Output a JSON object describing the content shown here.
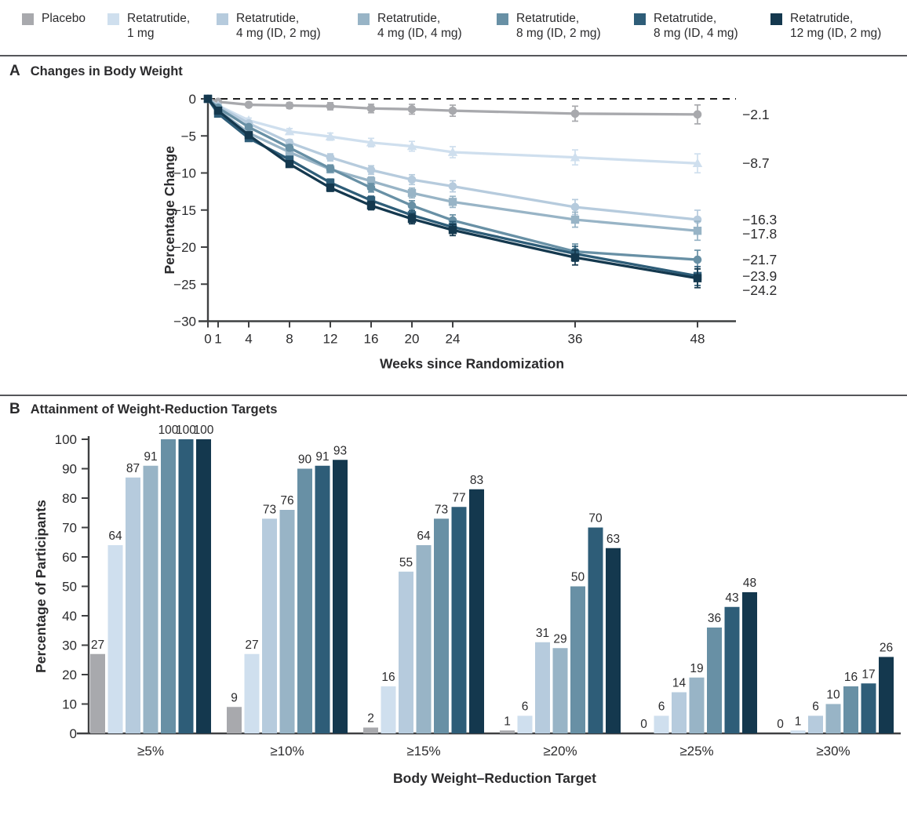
{
  "colors": {
    "axis": "#3f4042",
    "text": "#2b2b2d",
    "divider": "#55565a",
    "zero_line": "#1e1e1e",
    "series": [
      "#a8a9ad",
      "#cfdfee",
      "#b6cbdd",
      "#98b4c6",
      "#6890a5",
      "#2e5d78",
      "#14384e"
    ]
  },
  "legend": {
    "items": [
      {
        "line1": "Placebo",
        "line2": "",
        "color": "#a8a9ad"
      },
      {
        "line1": "Retatrutide,",
        "line2": "1 mg",
        "color": "#cfdfee"
      },
      {
        "line1": "Retatrutide,",
        "line2": "4 mg (ID, 2 mg)",
        "color": "#b6cbdd"
      },
      {
        "line1": "Retatrutide,",
        "line2": "4 mg (ID, 4 mg)",
        "color": "#98b4c6"
      },
      {
        "line1": "Retatrutide,",
        "line2": "8 mg (ID, 2 mg)",
        "color": "#6890a5"
      },
      {
        "line1": "Retatrutide,",
        "line2": "8 mg (ID, 4 mg)",
        "color": "#2e5d78"
      },
      {
        "line1": "Retatrutide,",
        "line2": "12 mg (ID, 2 mg)",
        "color": "#14384e"
      }
    ]
  },
  "panel_a": {
    "letter": "A",
    "title": "Changes in Body Weight",
    "ylabel": "Percentage Change",
    "xlabel": "Weeks since Randomization"
  },
  "panel_b": {
    "letter": "B",
    "title": "Attainment of Weight-Reduction Targets",
    "ylabel": "Percentage of Participants",
    "xlabel": "Body Weight–Reduction Target"
  },
  "chart_data": [
    {
      "type": "line",
      "title": "Changes in Body Weight",
      "xlabel": "Weeks since Randomization",
      "ylabel": "Percentage Change",
      "x": [
        0,
        1,
        4,
        8,
        12,
        16,
        20,
        24,
        36,
        48
      ],
      "xticks": [
        0,
        1,
        4,
        8,
        12,
        16,
        20,
        24,
        36,
        48
      ],
      "yticks": [
        0,
        -5,
        -10,
        -15,
        -20,
        -25,
        -30
      ],
      "ylim": [
        -30,
        0
      ],
      "zero_reference_line": true,
      "error_bars": true,
      "series": [
        {
          "name": "Placebo",
          "marker": "circle",
          "color": "#a8a9ad",
          "values": [
            0,
            -0.4,
            -0.8,
            -0.9,
            -1.0,
            -1.3,
            -1.4,
            -1.6,
            -2.0,
            -2.1
          ],
          "end_label": "−2.1"
        },
        {
          "name": "Retatrutide, 1 mg",
          "marker": "triangle",
          "color": "#cfdfee",
          "values": [
            0,
            -0.9,
            -2.9,
            -4.4,
            -5.1,
            -5.9,
            -6.4,
            -7.2,
            -7.9,
            -8.7
          ],
          "end_label": "−8.7"
        },
        {
          "name": "Retatrutide, 4 mg (ID, 2 mg)",
          "marker": "circle",
          "color": "#b6cbdd",
          "values": [
            0,
            -1.0,
            -3.3,
            -5.9,
            -7.9,
            -9.6,
            -10.9,
            -11.8,
            -14.6,
            -16.3
          ],
          "end_label": "−16.3"
        },
        {
          "name": "Retatrutide, 4 mg (ID, 4 mg)",
          "marker": "square",
          "color": "#98b4c6",
          "values": [
            0,
            -1.5,
            -4.6,
            -7.2,
            -9.5,
            -11.1,
            -12.7,
            -13.9,
            -16.3,
            -17.8
          ],
          "end_label": "−17.8"
        },
        {
          "name": "Retatrutide, 8 mg (ID, 2 mg)",
          "marker": "circle",
          "color": "#6890a5",
          "values": [
            0,
            -1.2,
            -3.8,
            -6.6,
            -9.4,
            -12.0,
            -14.4,
            -16.4,
            -20.6,
            -21.7
          ],
          "end_label": "−21.7"
        },
        {
          "name": "Retatrutide, 8 mg (ID, 4 mg)",
          "marker": "square",
          "color": "#2e5d78",
          "values": [
            0,
            -2.0,
            -5.3,
            -8.2,
            -11.3,
            -13.7,
            -15.7,
            -17.3,
            -20.9,
            -23.9
          ],
          "end_label": "−23.9"
        },
        {
          "name": "Retatrutide, 12 mg (ID, 2 mg)",
          "marker": "square",
          "color": "#14384e",
          "values": [
            0,
            -1.6,
            -4.9,
            -8.8,
            -12.0,
            -14.4,
            -16.2,
            -17.7,
            -21.4,
            -24.2
          ],
          "end_label": "−24.2"
        }
      ]
    },
    {
      "type": "bar",
      "title": "Attainment of Weight-Reduction Targets",
      "xlabel": "Body Weight–Reduction Target",
      "ylabel": "Percentage of Participants",
      "categories": [
        "≥5%",
        "≥10%",
        "≥15%",
        "≥20%",
        "≥25%",
        "≥30%"
      ],
      "yticks": [
        0,
        10,
        20,
        30,
        40,
        50,
        60,
        70,
        80,
        90,
        100
      ],
      "ylim": [
        0,
        100
      ],
      "series": [
        {
          "name": "Placebo",
          "color": "#a8a9ad",
          "values": [
            27,
            9,
            2,
            1,
            0,
            0
          ]
        },
        {
          "name": "Retatrutide, 1 mg",
          "color": "#cfdfee",
          "values": [
            64,
            27,
            16,
            6,
            6,
            1
          ]
        },
        {
          "name": "Retatrutide, 4 mg (ID, 2 mg)",
          "color": "#b6cbdd",
          "values": [
            87,
            73,
            55,
            31,
            14,
            6
          ]
        },
        {
          "name": "Retatrutide, 4 mg (ID, 4 mg)",
          "color": "#98b4c6",
          "values": [
            91,
            76,
            64,
            29,
            19,
            10
          ]
        },
        {
          "name": "Retatrutide, 8 mg (ID, 2 mg)",
          "color": "#6890a5",
          "values": [
            100,
            90,
            73,
            50,
            36,
            16
          ]
        },
        {
          "name": "Retatrutide, 8 mg (ID, 4 mg)",
          "color": "#2e5d78",
          "values": [
            100,
            91,
            77,
            70,
            43,
            17
          ]
        },
        {
          "name": "Retatrutide, 12 mg (ID, 2 mg)",
          "color": "#14384e",
          "values": [
            100,
            93,
            83,
            63,
            48,
            26
          ]
        }
      ]
    }
  ]
}
